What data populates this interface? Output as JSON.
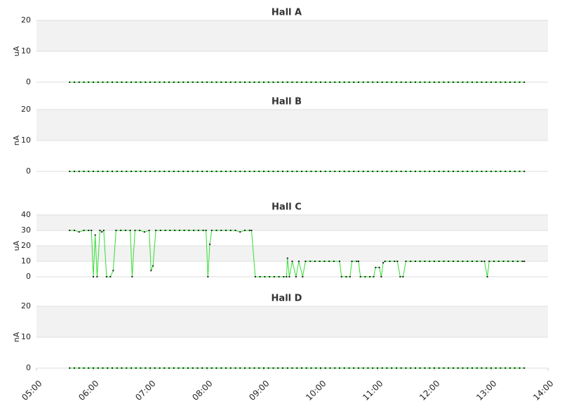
{
  "chart_data": [
    {
      "type": "line",
      "title": "Hall A",
      "ylabel": "uA",
      "ylim": [
        0,
        20
      ],
      "yticks": [
        0,
        10,
        20
      ],
      "xlim": [
        "05:00",
        "14:00"
      ],
      "grid": true,
      "color": "#33dd33",
      "marker_color": "#222222",
      "x": [
        "05:35",
        "05:40",
        "05:45",
        "05:50",
        "05:55",
        "06:00",
        "06:05",
        "06:10",
        "06:15",
        "06:20",
        "06:25",
        "06:30",
        "06:35",
        "06:40",
        "06:45",
        "06:50",
        "06:55",
        "07:00",
        "07:05",
        "07:10",
        "07:15",
        "07:20",
        "07:25",
        "07:30",
        "07:35",
        "07:40",
        "07:45",
        "07:50",
        "07:55",
        "08:00",
        "08:05",
        "08:10",
        "08:15",
        "08:20",
        "08:25",
        "08:30",
        "08:35",
        "08:40",
        "08:45",
        "08:50",
        "08:55",
        "09:00",
        "09:05",
        "09:10",
        "09:15",
        "09:20",
        "09:25",
        "09:30",
        "09:35",
        "09:40",
        "09:45",
        "09:50",
        "09:55",
        "10:00",
        "10:05",
        "10:10",
        "10:15",
        "10:20",
        "10:25",
        "10:30",
        "10:35",
        "10:40",
        "10:45",
        "10:50",
        "10:55",
        "11:00",
        "11:05",
        "11:10",
        "11:15",
        "11:20",
        "11:25",
        "11:30",
        "11:35",
        "11:40",
        "11:45",
        "11:50",
        "11:55",
        "12:00",
        "12:05",
        "12:10",
        "12:15",
        "12:20",
        "12:25",
        "12:30",
        "12:35",
        "12:40",
        "12:45",
        "12:50",
        "12:55",
        "13:00",
        "13:05",
        "13:10",
        "13:15",
        "13:20",
        "13:25",
        "13:30",
        "13:35"
      ],
      "values": [
        0,
        0,
        0,
        0,
        0,
        0,
        0,
        0,
        0,
        0,
        0,
        0,
        0,
        0,
        0,
        0,
        0,
        0,
        0,
        0,
        0,
        0,
        0,
        0,
        0,
        0,
        0,
        0,
        0,
        0,
        0,
        0,
        0,
        0,
        0,
        0,
        0,
        0,
        0,
        0,
        0,
        0,
        0,
        0,
        0,
        0,
        0,
        0,
        0,
        0,
        0,
        0,
        0,
        0,
        0,
        0,
        0,
        0,
        0,
        0,
        0,
        0,
        0,
        0,
        0,
        0,
        0,
        0,
        0,
        0,
        0,
        0,
        0,
        0,
        0,
        0,
        0,
        0,
        0,
        0,
        0,
        0,
        0,
        0,
        0,
        0,
        0,
        0,
        0,
        0,
        0,
        0,
        0,
        0,
        0,
        0,
        0
      ]
    },
    {
      "type": "line",
      "title": "Hall B",
      "ylabel": "nA",
      "ylim": [
        0,
        20
      ],
      "yticks": [
        0,
        10,
        20
      ],
      "xlim": [
        "05:00",
        "14:00"
      ],
      "grid": true,
      "color": "#33dd33",
      "marker_color": "#222222",
      "x": [
        "05:35",
        "05:40",
        "05:45",
        "05:50",
        "05:55",
        "06:00",
        "06:05",
        "06:10",
        "06:15",
        "06:20",
        "06:25",
        "06:30",
        "06:35",
        "06:40",
        "06:45",
        "06:50",
        "06:55",
        "07:00",
        "07:05",
        "07:10",
        "07:15",
        "07:20",
        "07:25",
        "07:30",
        "07:35",
        "07:40",
        "07:45",
        "07:50",
        "07:55",
        "08:00",
        "08:05",
        "08:10",
        "08:15",
        "08:20",
        "08:25",
        "08:30",
        "08:35",
        "08:40",
        "08:45",
        "08:50",
        "08:55",
        "09:00",
        "09:05",
        "09:10",
        "09:15",
        "09:20",
        "09:25",
        "09:30",
        "09:35",
        "09:40",
        "09:45",
        "09:50",
        "09:55",
        "10:00",
        "10:05",
        "10:10",
        "10:15",
        "10:20",
        "10:25",
        "10:30",
        "10:35",
        "10:40",
        "10:45",
        "10:50",
        "10:55",
        "11:00",
        "11:05",
        "11:10",
        "11:15",
        "11:20",
        "11:25",
        "11:30",
        "11:35",
        "11:40",
        "11:45",
        "11:50",
        "11:55",
        "12:00",
        "12:05",
        "12:10",
        "12:15",
        "12:20",
        "12:25",
        "12:30",
        "12:35",
        "12:40",
        "12:45",
        "12:50",
        "12:55",
        "13:00",
        "13:05",
        "13:10",
        "13:15",
        "13:20",
        "13:25",
        "13:30",
        "13:35"
      ],
      "values": [
        0,
        0,
        0,
        0,
        0,
        0,
        0,
        0,
        0,
        0,
        0,
        0,
        0,
        0,
        0,
        0,
        0,
        0,
        0,
        0,
        0,
        0,
        0,
        0,
        0,
        0,
        0,
        0,
        0,
        0,
        0,
        0,
        0,
        0,
        0,
        0,
        0,
        0,
        0,
        0,
        0,
        0,
        0,
        0,
        0,
        0,
        0,
        0,
        0,
        0,
        0,
        0,
        0,
        0,
        0,
        0,
        0,
        0,
        0,
        0,
        0,
        0,
        0,
        0,
        0,
        0,
        0,
        0,
        0,
        0,
        0,
        0,
        0,
        0,
        0,
        0,
        0,
        0,
        0,
        0,
        0,
        0,
        0,
        0,
        0,
        0,
        0,
        0,
        0,
        0,
        0,
        0,
        0,
        0,
        0,
        0,
        0
      ]
    },
    {
      "type": "line",
      "title": "Hall C",
      "ylabel": "uA",
      "ylim": [
        0,
        40
      ],
      "yticks": [
        0,
        10,
        20,
        30,
        40
      ],
      "xlim": [
        "05:00",
        "14:00"
      ],
      "grid": true,
      "color": "#33dd33",
      "marker_color": "#222222",
      "x": [
        "05:35",
        "05:40",
        "05:45",
        "05:50",
        "05:55",
        "05:58",
        "06:00",
        "06:02",
        "06:04",
        "06:07",
        "06:09",
        "06:11",
        "06:14",
        "06:18",
        "06:21",
        "06:24",
        "06:29",
        "06:34",
        "06:39",
        "06:41",
        "06:44",
        "06:49",
        "06:54",
        "06:59",
        "07:01",
        "07:03",
        "07:06",
        "07:11",
        "07:16",
        "07:21",
        "07:26",
        "07:31",
        "07:36",
        "07:41",
        "07:46",
        "07:51",
        "07:56",
        "07:59",
        "08:01",
        "08:03",
        "08:05",
        "08:10",
        "08:15",
        "08:20",
        "08:25",
        "08:30",
        "08:35",
        "08:40",
        "08:45",
        "08:47",
        "08:51",
        "08:56",
        "09:01",
        "09:06",
        "09:11",
        "09:16",
        "09:21",
        "09:24",
        "09:25",
        "09:27",
        "09:30",
        "09:34",
        "09:37",
        "09:41",
        "09:44",
        "09:49",
        "09:54",
        "09:59",
        "10:04",
        "10:09",
        "10:14",
        "10:20",
        "10:22",
        "10:27",
        "10:31",
        "10:33",
        "10:38",
        "10:40",
        "10:42",
        "10:47",
        "10:52",
        "10:56",
        "10:58",
        "11:02",
        "11:04",
        "11:06",
        "11:08",
        "11:13",
        "11:18",
        "11:21",
        "11:24",
        "11:27",
        "11:30",
        "11:35",
        "11:40",
        "11:45",
        "11:50",
        "11:55",
        "12:00",
        "12:05",
        "12:10",
        "12:15",
        "12:20",
        "12:25",
        "12:30",
        "12:35",
        "12:40",
        "12:45",
        "12:50",
        "12:53",
        "12:56",
        "12:58",
        "13:03",
        "13:08",
        "13:13",
        "13:18",
        "13:23",
        "13:28",
        "13:33",
        "13:35"
      ],
      "values": [
        30,
        30,
        29,
        30,
        30,
        30,
        0,
        27,
        0,
        30,
        29,
        30,
        0,
        0,
        4,
        30,
        30,
        30,
        30,
        0,
        30,
        30,
        29,
        30,
        4,
        7,
        30,
        30,
        30,
        30,
        30,
        30,
        30,
        30,
        30,
        30,
        30,
        30,
        0,
        21,
        30,
        30,
        30,
        30,
        30,
        30,
        29,
        30,
        30,
        30,
        0,
        0,
        0,
        0,
        0,
        0,
        0,
        0,
        12,
        0,
        10,
        0,
        10,
        0,
        10,
        10,
        10,
        10,
        10,
        10,
        10,
        10,
        0,
        0,
        0,
        10,
        10,
        10,
        0,
        0,
        0,
        0,
        6,
        6,
        0,
        9,
        10,
        10,
        10,
        10,
        0,
        0,
        10,
        10,
        10,
        10,
        10,
        10,
        10,
        10,
        10,
        10,
        10,
        10,
        10,
        10,
        10,
        10,
        10,
        10,
        0,
        10,
        10,
        10,
        10,
        10,
        10,
        10,
        10,
        10
      ]
    },
    {
      "type": "line",
      "title": "Hall D",
      "ylabel": "nA",
      "ylim": [
        0,
        20
      ],
      "yticks": [
        0,
        10,
        20
      ],
      "xlim": [
        "05:00",
        "14:00"
      ],
      "xticks": [
        "05:00",
        "06:00",
        "07:00",
        "08:00",
        "09:00",
        "10:00",
        "11:00",
        "12:00",
        "13:00",
        "14:00"
      ],
      "grid": true,
      "color": "#33dd33",
      "marker_color": "#222222",
      "x": [
        "05:35",
        "05:40",
        "05:45",
        "05:50",
        "05:55",
        "06:00",
        "06:05",
        "06:10",
        "06:15",
        "06:20",
        "06:25",
        "06:30",
        "06:35",
        "06:40",
        "06:45",
        "06:50",
        "06:55",
        "07:00",
        "07:05",
        "07:10",
        "07:15",
        "07:20",
        "07:25",
        "07:30",
        "07:35",
        "07:40",
        "07:45",
        "07:50",
        "07:55",
        "08:00",
        "08:05",
        "08:10",
        "08:15",
        "08:20",
        "08:25",
        "08:30",
        "08:35",
        "08:40",
        "08:45",
        "08:50",
        "08:55",
        "09:00",
        "09:05",
        "09:10",
        "09:15",
        "09:20",
        "09:25",
        "09:30",
        "09:35",
        "09:40",
        "09:45",
        "09:50",
        "09:55",
        "10:00",
        "10:05",
        "10:10",
        "10:15",
        "10:20",
        "10:25",
        "10:30",
        "10:35",
        "10:40",
        "10:45",
        "10:50",
        "10:55",
        "11:00",
        "11:05",
        "11:10",
        "11:15",
        "11:20",
        "11:25",
        "11:30",
        "11:35",
        "11:40",
        "11:45",
        "11:50",
        "11:55",
        "12:00",
        "12:05",
        "12:10",
        "12:15",
        "12:20",
        "12:25",
        "12:30",
        "12:35",
        "12:40",
        "12:45",
        "12:50",
        "12:55",
        "13:00",
        "13:05",
        "13:10",
        "13:15",
        "13:20",
        "13:25",
        "13:30",
        "13:35"
      ],
      "values": [
        0,
        0,
        0,
        0,
        0,
        0,
        0,
        0,
        0,
        0,
        0,
        0,
        0,
        0,
        0,
        0,
        0,
        0,
        0,
        0,
        0,
        0,
        0,
        0,
        0,
        0,
        0,
        0,
        0,
        0,
        0,
        0,
        0,
        0,
        0,
        0,
        0,
        0,
        0,
        0,
        0,
        0,
        0,
        0,
        0,
        0,
        0,
        0,
        0,
        0,
        0,
        0,
        0,
        0,
        0,
        0,
        0,
        0,
        0,
        0,
        0,
        0,
        0,
        0,
        0,
        0,
        0,
        0,
        0,
        0,
        0,
        0,
        0,
        0,
        0,
        0,
        0,
        0,
        0,
        0,
        0,
        0,
        0,
        0,
        0,
        0,
        0,
        0,
        0,
        0,
        0,
        0,
        0,
        0,
        0,
        0,
        0
      ]
    }
  ]
}
